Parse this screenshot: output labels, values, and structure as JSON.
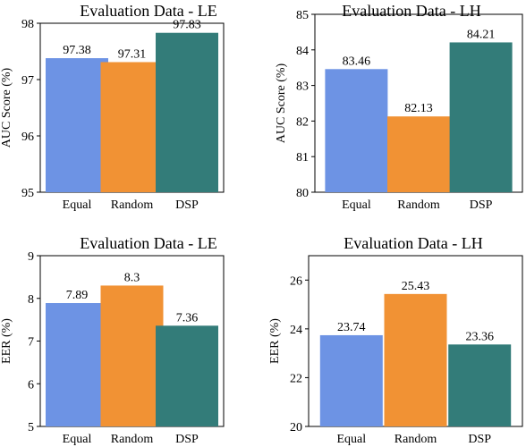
{
  "chart_data": [
    {
      "type": "bar",
      "title": "Evaluation Data - LE",
      "ylabel": "AUC Score (%)",
      "categories": [
        "Equal",
        "Random",
        "DSP"
      ],
      "values": [
        97.38,
        97.31,
        97.83
      ],
      "labels": [
        "97.38",
        "97.31",
        "97.83"
      ],
      "colors": [
        "#6d93e4",
        "#f19234",
        "#337c79"
      ],
      "ylim": [
        95,
        98
      ],
      "yticks": [
        95,
        96,
        97,
        98
      ],
      "grid": false
    },
    {
      "type": "bar",
      "title": "Evaluation Data - LH",
      "ylabel": "AUC Score (%)",
      "categories": [
        "Equal",
        "Random",
        "DSP"
      ],
      "values": [
        83.46,
        82.13,
        84.21
      ],
      "labels": [
        "83.46",
        "82.13",
        "84.21"
      ],
      "colors": [
        "#6d93e4",
        "#f19234",
        "#337c79"
      ],
      "ylim": [
        80,
        85
      ],
      "yticks": [
        80,
        81,
        82,
        83,
        84,
        85
      ],
      "grid": false
    },
    {
      "type": "bar",
      "title": "Evaluation Data - LE",
      "ylabel": "EER (%)",
      "categories": [
        "Equal",
        "Random",
        "DSP"
      ],
      "values": [
        7.89,
        8.3,
        7.36
      ],
      "labels": [
        "7.89",
        "8.3",
        "7.36"
      ],
      "colors": [
        "#6d93e4",
        "#f19234",
        "#337c79"
      ],
      "ylim": [
        5,
        9
      ],
      "yticks": [
        5,
        6,
        7,
        8,
        9
      ],
      "grid": false
    },
    {
      "type": "bar",
      "title": "Evaluation Data - LH",
      "ylabel": "EER (%)",
      "categories": [
        "Equal",
        "Random",
        "DSP"
      ],
      "values": [
        23.74,
        25.43,
        23.36
      ],
      "labels": [
        "23.74",
        "25.43",
        "23.36"
      ],
      "colors": [
        "#6d93e4",
        "#f19234",
        "#337c79"
      ],
      "ylim": [
        20,
        27
      ],
      "yticks": [
        20,
        22,
        24,
        26
      ],
      "grid": false
    }
  ]
}
